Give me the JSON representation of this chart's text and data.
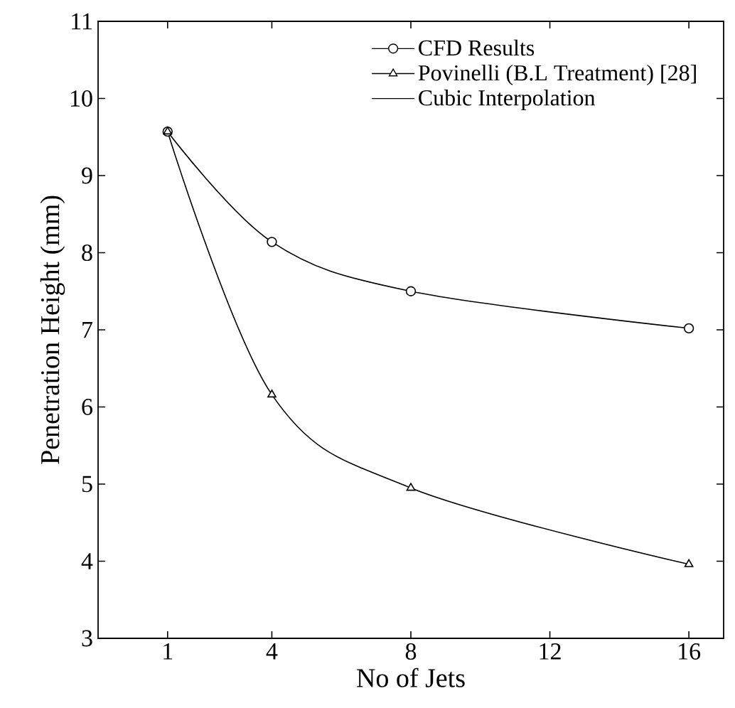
{
  "chart_data": {
    "type": "line",
    "xlabel": "No of Jets",
    "ylabel": "Penetration Height (mm)",
    "xlim": [
      -1,
      17
    ],
    "ylim": [
      3,
      11
    ],
    "xticks": [
      1,
      4,
      8,
      12,
      16
    ],
    "yticks": [
      3,
      4,
      5,
      6,
      7,
      8,
      9,
      10,
      11
    ],
    "grid": false,
    "legend": "top right",
    "series": [
      {
        "name": "CFD Results",
        "type": "scatter",
        "marker": "circle",
        "color": "#000000",
        "x": [
          1,
          4,
          8,
          16
        ],
        "values": [
          9.57,
          8.14,
          7.5,
          7.02
        ]
      },
      {
        "name": "Povinelli (B.L Treatment) [28]",
        "type": "scatter",
        "marker": "triangle",
        "color": "#000000",
        "x": [
          1,
          4,
          8,
          16
        ],
        "values": [
          9.57,
          6.16,
          4.95,
          3.96
        ]
      },
      {
        "name": "Cubic Interpolation",
        "line_style": "solid",
        "color": "#000000",
        "x": [
          1,
          4,
          8,
          16
        ],
        "values": [
          9.57,
          8.14,
          7.5,
          7.02
        ]
      },
      {
        "line_style": "solid",
        "color": "#000000",
        "x": [
          1,
          4,
          8,
          16
        ],
        "values": [
          9.57,
          6.16,
          4.95,
          3.96
        ]
      }
    ]
  }
}
